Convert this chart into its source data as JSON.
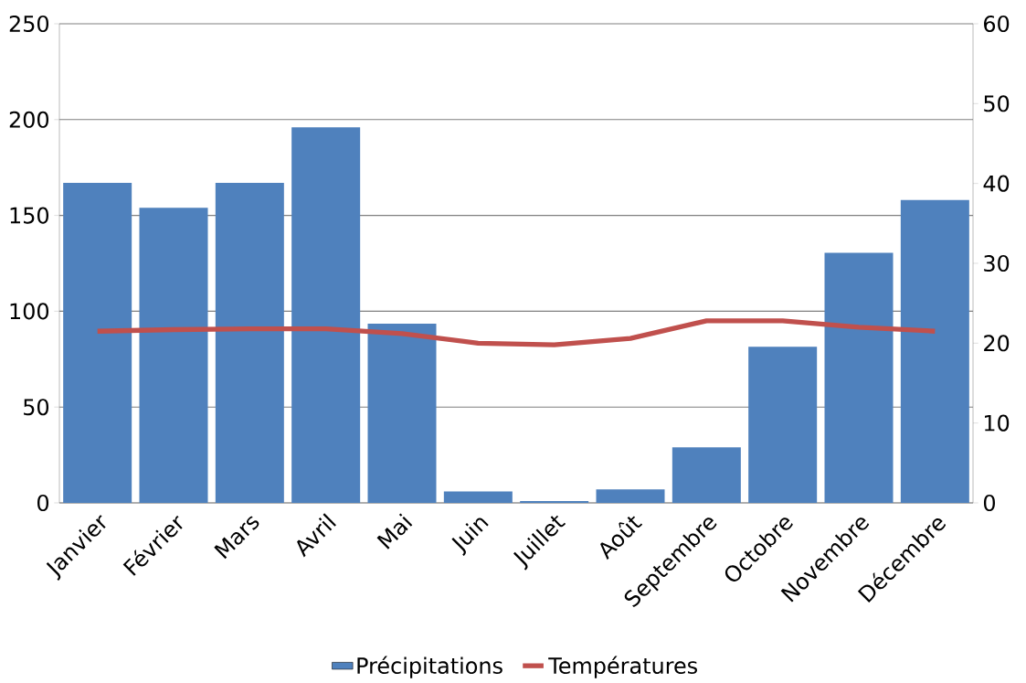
{
  "chart_data": {
    "type": "bar",
    "categories": [
      "Janvier",
      "Février",
      "Mars",
      "Avril",
      "Mai",
      "Juin",
      "Juillet",
      "Août",
      "Septembre",
      "Octobre",
      "Novembre",
      "Décembre"
    ],
    "series": [
      {
        "name": "Précipitations",
        "color": "#4f81bd",
        "values": [
          167,
          154,
          167,
          196,
          93.5,
          6,
          1,
          7,
          29,
          81.5,
          130.5,
          158
        ]
      },
      {
        "name": "Températures",
        "type": "line",
        "axis": "y2",
        "color": "#c0504d",
        "values": [
          21.5,
          21.7,
          21.8,
          21.8,
          21.2,
          20.0,
          19.8,
          20.6,
          22.8,
          22.8,
          22.0,
          21.5
        ]
      }
    ],
    "ylim": [
      0,
      250
    ],
    "yticks": [
      0,
      50,
      100,
      150,
      200,
      250
    ],
    "y2lim": [
      0,
      60
    ],
    "y2ticks": [
      0,
      10,
      20,
      30,
      40,
      50,
      60
    ],
    "grid": "y",
    "legend": "bottom",
    "marker": "none",
    "line_style": "solid"
  }
}
